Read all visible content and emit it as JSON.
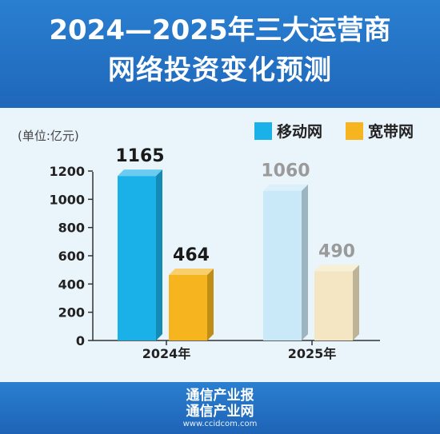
{
  "header": {
    "title_line1": "2024—2025年三大运营商",
    "title_line2": "网络投资变化预测"
  },
  "footer": {
    "brand1": "通信产业报",
    "brand2": "通信产业网",
    "url": "www.ccidcom.com"
  },
  "colors": {
    "mobile_2024": "#1ab1e8",
    "broadband_2024": "#f6b51e",
    "mobile_2025": "#c9e8f8",
    "broadband_2025": "#f4e6c2",
    "label_2024": "#1a1a1a",
    "label_2025": "#9a9a9a"
  },
  "chart_data": {
    "type": "bar",
    "unit_label": "(单位:亿元)",
    "categories": [
      "2024年",
      "2025年"
    ],
    "series": [
      {
        "name": "移动网",
        "values": [
          1165,
          1060
        ]
      },
      {
        "name": "宽带网",
        "values": [
          464,
          490
        ]
      }
    ],
    "ylim": [
      0,
      1200
    ],
    "yticks": [
      "0",
      "200",
      "400",
      "600",
      "800",
      "1000",
      "1200"
    ],
    "legend_position": "top-right",
    "grid": false
  }
}
